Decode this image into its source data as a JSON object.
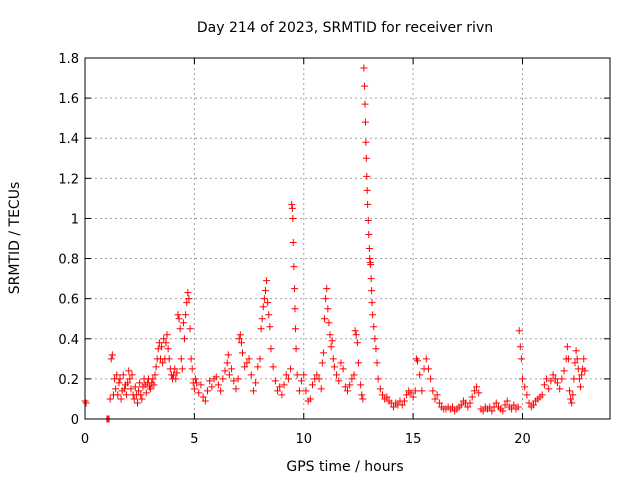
{
  "chart_data": {
    "type": "scatter",
    "title": "Day 214 of 2023, SRMTID for receiver rivn",
    "xlabel": "GPS time / hours",
    "ylabel": "SRMTID / TECUs",
    "xlim": [
      0,
      24
    ],
    "ylim": [
      0,
      1.8
    ],
    "x_ticks": [
      "0",
      "5",
      "10",
      "15",
      "20"
    ],
    "y_ticks": [
      "0",
      "0.2",
      "0.4",
      "0.6",
      "0.8",
      "1",
      "1.2",
      "1.4",
      "1.6",
      "1.8"
    ],
    "grid": true,
    "marker": "+",
    "color": "#ff0000",
    "series": [
      {
        "name": "SRMTID",
        "points": [
          [
            0.0,
            0.09
          ],
          [
            0.05,
            0.08
          ],
          [
            1.0,
            0.0
          ],
          [
            1.05,
            0.0
          ],
          [
            1.1,
            0.0
          ],
          [
            1.15,
            0.1
          ],
          [
            1.2,
            0.3
          ],
          [
            1.25,
            0.32
          ],
          [
            1.3,
            0.12
          ],
          [
            1.35,
            0.2
          ],
          [
            1.4,
            0.15
          ],
          [
            1.45,
            0.22
          ],
          [
            1.5,
            0.12
          ],
          [
            1.55,
            0.18
          ],
          [
            1.6,
            0.2
          ],
          [
            1.65,
            0.1
          ],
          [
            1.7,
            0.14
          ],
          [
            1.75,
            0.22
          ],
          [
            1.8,
            0.15
          ],
          [
            1.85,
            0.17
          ],
          [
            1.9,
            0.12
          ],
          [
            1.95,
            0.18
          ],
          [
            2.0,
            0.24
          ],
          [
            2.05,
            0.2
          ],
          [
            2.1,
            0.15
          ],
          [
            2.15,
            0.22
          ],
          [
            2.2,
            0.12
          ],
          [
            2.25,
            0.1
          ],
          [
            2.3,
            0.16
          ],
          [
            2.35,
            0.12
          ],
          [
            2.4,
            0.08
          ],
          [
            2.45,
            0.14
          ],
          [
            2.5,
            0.18
          ],
          [
            2.55,
            0.12
          ],
          [
            2.6,
            0.1
          ],
          [
            2.65,
            0.16
          ],
          [
            2.7,
            0.2
          ],
          [
            2.75,
            0.17
          ],
          [
            2.8,
            0.13
          ],
          [
            2.85,
            0.18
          ],
          [
            2.9,
            0.2
          ],
          [
            2.95,
            0.16
          ],
          [
            3.0,
            0.15
          ],
          [
            3.05,
            0.18
          ],
          [
            3.1,
            0.2
          ],
          [
            3.15,
            0.17
          ],
          [
            3.2,
            0.22
          ],
          [
            3.25,
            0.26
          ],
          [
            3.3,
            0.3
          ],
          [
            3.35,
            0.35
          ],
          [
            3.4,
            0.38
          ],
          [
            3.45,
            0.3
          ],
          [
            3.5,
            0.36
          ],
          [
            3.55,
            0.28
          ],
          [
            3.6,
            0.4
          ],
          [
            3.65,
            0.3
          ],
          [
            3.7,
            0.38
          ],
          [
            3.75,
            0.42
          ],
          [
            3.8,
            0.35
          ],
          [
            3.85,
            0.3
          ],
          [
            3.9,
            0.25
          ],
          [
            3.95,
            0.22
          ],
          [
            4.0,
            0.2
          ],
          [
            4.05,
            0.22
          ],
          [
            4.1,
            0.25
          ],
          [
            4.15,
            0.2
          ],
          [
            4.2,
            0.23
          ],
          [
            4.25,
            0.52
          ],
          [
            4.3,
            0.5
          ],
          [
            4.35,
            0.45
          ],
          [
            4.4,
            0.3
          ],
          [
            4.45,
            0.25
          ],
          [
            4.5,
            0.48
          ],
          [
            4.55,
            0.4
          ],
          [
            4.6,
            0.52
          ],
          [
            4.65,
            0.58
          ],
          [
            4.7,
            0.63
          ],
          [
            4.75,
            0.6
          ],
          [
            4.8,
            0.45
          ],
          [
            4.85,
            0.3
          ],
          [
            4.9,
            0.25
          ],
          [
            4.95,
            0.18
          ],
          [
            5.0,
            0.15
          ],
          [
            5.05,
            0.2
          ],
          [
            5.1,
            0.18
          ],
          [
            5.2,
            0.13
          ],
          [
            5.3,
            0.17
          ],
          [
            5.4,
            0.11
          ],
          [
            5.5,
            0.09
          ],
          [
            5.6,
            0.14
          ],
          [
            5.7,
            0.19
          ],
          [
            5.8,
            0.16
          ],
          [
            5.9,
            0.2
          ],
          [
            6.0,
            0.21
          ],
          [
            6.1,
            0.17
          ],
          [
            6.2,
            0.14
          ],
          [
            6.3,
            0.2
          ],
          [
            6.4,
            0.24
          ],
          [
            6.5,
            0.28
          ],
          [
            6.55,
            0.32
          ],
          [
            6.6,
            0.22
          ],
          [
            6.7,
            0.25
          ],
          [
            6.8,
            0.19
          ],
          [
            6.9,
            0.15
          ],
          [
            7.0,
            0.2
          ],
          [
            7.05,
            0.4
          ],
          [
            7.1,
            0.42
          ],
          [
            7.15,
            0.38
          ],
          [
            7.2,
            0.33
          ],
          [
            7.3,
            0.26
          ],
          [
            7.4,
            0.28
          ],
          [
            7.5,
            0.3
          ],
          [
            7.6,
            0.22
          ],
          [
            7.7,
            0.14
          ],
          [
            7.8,
            0.18
          ],
          [
            7.9,
            0.26
          ],
          [
            8.0,
            0.3
          ],
          [
            8.05,
            0.45
          ],
          [
            8.1,
            0.5
          ],
          [
            8.15,
            0.56
          ],
          [
            8.2,
            0.6
          ],
          [
            8.25,
            0.64
          ],
          [
            8.3,
            0.69
          ],
          [
            8.35,
            0.58
          ],
          [
            8.4,
            0.52
          ],
          [
            8.45,
            0.46
          ],
          [
            8.5,
            0.35
          ],
          [
            8.6,
            0.26
          ],
          [
            8.7,
            0.19
          ],
          [
            8.8,
            0.14
          ],
          [
            8.9,
            0.16
          ],
          [
            9.0,
            0.12
          ],
          [
            9.1,
            0.17
          ],
          [
            9.2,
            0.22
          ],
          [
            9.3,
            0.2
          ],
          [
            9.4,
            0.25
          ],
          [
            9.45,
            1.07
          ],
          [
            9.48,
            1.05
          ],
          [
            9.5,
            1.0
          ],
          [
            9.52,
            0.88
          ],
          [
            9.55,
            0.76
          ],
          [
            9.58,
            0.65
          ],
          [
            9.6,
            0.55
          ],
          [
            9.62,
            0.45
          ],
          [
            9.65,
            0.35
          ],
          [
            9.7,
            0.22
          ],
          [
            9.8,
            0.14
          ],
          [
            9.9,
            0.19
          ],
          [
            10.0,
            0.22
          ],
          [
            10.1,
            0.14
          ],
          [
            10.2,
            0.09
          ],
          [
            10.3,
            0.1
          ],
          [
            10.4,
            0.17
          ],
          [
            10.5,
            0.2
          ],
          [
            10.6,
            0.22
          ],
          [
            10.7,
            0.2
          ],
          [
            10.8,
            0.15
          ],
          [
            10.85,
            0.28
          ],
          [
            10.9,
            0.33
          ],
          [
            10.95,
            0.5
          ],
          [
            11.0,
            0.6
          ],
          [
            11.05,
            0.65
          ],
          [
            11.1,
            0.55
          ],
          [
            11.15,
            0.48
          ],
          [
            11.2,
            0.42
          ],
          [
            11.25,
            0.36
          ],
          [
            11.3,
            0.39
          ],
          [
            11.35,
            0.3
          ],
          [
            11.4,
            0.26
          ],
          [
            11.5,
            0.22
          ],
          [
            11.6,
            0.19
          ],
          [
            11.7,
            0.28
          ],
          [
            11.8,
            0.25
          ],
          [
            11.9,
            0.16
          ],
          [
            12.0,
            0.14
          ],
          [
            12.1,
            0.17
          ],
          [
            12.2,
            0.2
          ],
          [
            12.3,
            0.22
          ],
          [
            12.35,
            0.44
          ],
          [
            12.4,
            0.42
          ],
          [
            12.45,
            0.38
          ],
          [
            12.5,
            0.28
          ],
          [
            12.6,
            0.17
          ],
          [
            12.65,
            0.12
          ],
          [
            12.7,
            0.1
          ],
          [
            12.75,
            1.75
          ],
          [
            12.78,
            1.66
          ],
          [
            12.8,
            1.57
          ],
          [
            12.82,
            1.48
          ],
          [
            12.84,
            1.38
          ],
          [
            12.86,
            1.3
          ],
          [
            12.88,
            1.21
          ],
          [
            12.9,
            1.14
          ],
          [
            12.92,
            1.07
          ],
          [
            12.95,
            0.99
          ],
          [
            12.97,
            0.92
          ],
          [
            13.0,
            0.85
          ],
          [
            13.02,
            0.8
          ],
          [
            13.04,
            0.78
          ],
          [
            13.06,
            0.77
          ],
          [
            13.08,
            0.7
          ],
          [
            13.1,
            0.64
          ],
          [
            13.12,
            0.58
          ],
          [
            13.15,
            0.52
          ],
          [
            13.2,
            0.46
          ],
          [
            13.25,
            0.4
          ],
          [
            13.3,
            0.35
          ],
          [
            13.35,
            0.28
          ],
          [
            13.4,
            0.2
          ],
          [
            13.5,
            0.15
          ],
          [
            13.6,
            0.12
          ],
          [
            13.7,
            0.1
          ],
          [
            13.8,
            0.11
          ],
          [
            13.9,
            0.09
          ],
          [
            14.0,
            0.08
          ],
          [
            14.1,
            0.06
          ],
          [
            14.2,
            0.08
          ],
          [
            14.3,
            0.07
          ],
          [
            14.4,
            0.09
          ],
          [
            14.5,
            0.07
          ],
          [
            14.6,
            0.09
          ],
          [
            14.7,
            0.12
          ],
          [
            14.8,
            0.14
          ],
          [
            14.9,
            0.13
          ],
          [
            15.0,
            0.11
          ],
          [
            15.1,
            0.14
          ],
          [
            15.15,
            0.3
          ],
          [
            15.2,
            0.29
          ],
          [
            15.3,
            0.22
          ],
          [
            15.4,
            0.14
          ],
          [
            15.5,
            0.25
          ],
          [
            15.6,
            0.3
          ],
          [
            15.7,
            0.25
          ],
          [
            15.8,
            0.2
          ],
          [
            15.9,
            0.14
          ],
          [
            16.0,
            0.1
          ],
          [
            16.1,
            0.12
          ],
          [
            16.2,
            0.08
          ],
          [
            16.3,
            0.06
          ],
          [
            16.4,
            0.05
          ],
          [
            16.5,
            0.05
          ],
          [
            16.6,
            0.06
          ],
          [
            16.7,
            0.05
          ],
          [
            16.8,
            0.06
          ],
          [
            16.9,
            0.04
          ],
          [
            17.0,
            0.05
          ],
          [
            17.1,
            0.06
          ],
          [
            17.2,
            0.07
          ],
          [
            17.3,
            0.09
          ],
          [
            17.4,
            0.08
          ],
          [
            17.5,
            0.06
          ],
          [
            17.6,
            0.08
          ],
          [
            17.7,
            0.11
          ],
          [
            17.8,
            0.14
          ],
          [
            17.9,
            0.16
          ],
          [
            18.0,
            0.13
          ],
          [
            18.1,
            0.05
          ],
          [
            18.2,
            0.04
          ],
          [
            18.3,
            0.06
          ],
          [
            18.4,
            0.05
          ],
          [
            18.5,
            0.06
          ],
          [
            18.6,
            0.04
          ],
          [
            18.7,
            0.06
          ],
          [
            18.8,
            0.08
          ],
          [
            18.9,
            0.06
          ],
          [
            19.0,
            0.05
          ],
          [
            19.1,
            0.04
          ],
          [
            19.2,
            0.07
          ],
          [
            19.3,
            0.09
          ],
          [
            19.4,
            0.06
          ],
          [
            19.5,
            0.05
          ],
          [
            19.6,
            0.07
          ],
          [
            19.7,
            0.05
          ],
          [
            19.8,
            0.06
          ],
          [
            19.85,
            0.44
          ],
          [
            19.9,
            0.36
          ],
          [
            19.95,
            0.3
          ],
          [
            20.0,
            0.2
          ],
          [
            20.1,
            0.16
          ],
          [
            20.2,
            0.12
          ],
          [
            20.3,
            0.08
          ],
          [
            20.4,
            0.06
          ],
          [
            20.5,
            0.07
          ],
          [
            20.6,
            0.09
          ],
          [
            20.7,
            0.1
          ],
          [
            20.8,
            0.11
          ],
          [
            20.9,
            0.12
          ],
          [
            21.0,
            0.17
          ],
          [
            21.1,
            0.2
          ],
          [
            21.2,
            0.15
          ],
          [
            21.3,
            0.19
          ],
          [
            21.4,
            0.22
          ],
          [
            21.5,
            0.2
          ],
          [
            21.6,
            0.18
          ],
          [
            21.7,
            0.15
          ],
          [
            21.8,
            0.2
          ],
          [
            21.9,
            0.24
          ],
          [
            22.0,
            0.3
          ],
          [
            22.05,
            0.36
          ],
          [
            22.1,
            0.3
          ],
          [
            22.15,
            0.14
          ],
          [
            22.2,
            0.1
          ],
          [
            22.25,
            0.08
          ],
          [
            22.3,
            0.12
          ],
          [
            22.35,
            0.2
          ],
          [
            22.4,
            0.28
          ],
          [
            22.45,
            0.34
          ],
          [
            22.5,
            0.3
          ],
          [
            22.55,
            0.25
          ],
          [
            22.6,
            0.2
          ],
          [
            22.65,
            0.16
          ],
          [
            22.7,
            0.22
          ],
          [
            22.75,
            0.25
          ],
          [
            22.8,
            0.3
          ],
          [
            22.85,
            0.24
          ]
        ]
      }
    ]
  }
}
